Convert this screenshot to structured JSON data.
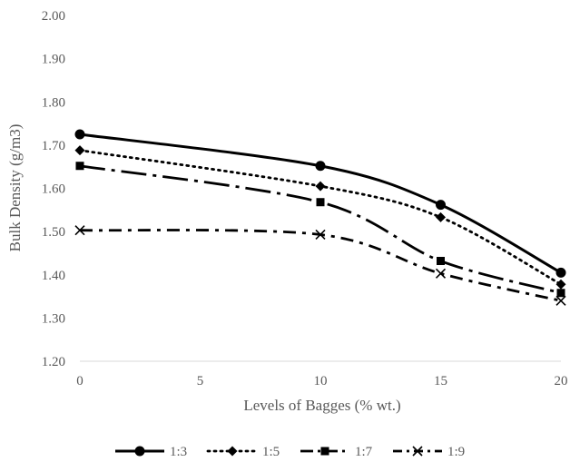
{
  "chart_data": {
    "type": "line",
    "title": "",
    "xlabel": "Levels of Bagges (% wt.)",
    "ylabel": "Bulk Density (g/m3)",
    "x": [
      0,
      10,
      15,
      20
    ],
    "xticks": [
      "0",
      "5",
      "10",
      "15",
      "20"
    ],
    "xlim": [
      0,
      20
    ],
    "ylim": [
      1.2,
      2.0
    ],
    "yticks": [
      "1.20",
      "1.30",
      "1.40",
      "1.50",
      "1.60",
      "1.70",
      "1.80",
      "1.90",
      "2.00"
    ],
    "grid": false,
    "legend_position": "bottom",
    "series": [
      {
        "name": "1:3",
        "values": [
          1.725,
          1.652,
          1.562,
          1.405
        ],
        "marker": "circle",
        "dash": "solid",
        "color": "#000000"
      },
      {
        "name": "1:5",
        "values": [
          1.688,
          1.605,
          1.533,
          1.378
        ],
        "marker": "diamond",
        "dash": "dotted",
        "color": "#000000"
      },
      {
        "name": "1:7",
        "values": [
          1.652,
          1.568,
          1.432,
          1.358
        ],
        "marker": "square",
        "dash": "long-dash-dot",
        "color": "#000000"
      },
      {
        "name": "1:9",
        "values": [
          1.503,
          1.493,
          1.403,
          1.34
        ],
        "marker": "cross",
        "dash": "dash-dot",
        "color": "#000000"
      }
    ]
  }
}
